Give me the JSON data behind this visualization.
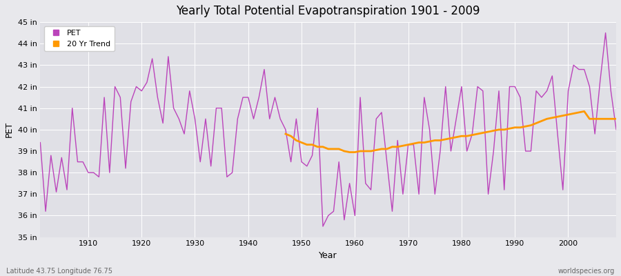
{
  "title": "Yearly Total Potential Evapotranspiration 1901 - 2009",
  "xlabel": "Year",
  "ylabel": "PET",
  "subtitle_left": "Latitude 43.75 Longitude 76.75",
  "subtitle_right": "worldspecies.org",
  "pet_color": "#bb44bb",
  "trend_color": "#ff9900",
  "fig_bg_color": "#e8e8ec",
  "plot_bg_color": "#e0e0e6",
  "grid_color": "#ffffff",
  "ylim": [
    35,
    45
  ],
  "xlim": [
    1901,
    2009
  ],
  "xticks": [
    1910,
    1920,
    1930,
    1940,
    1950,
    1960,
    1970,
    1980,
    1990,
    2000
  ],
  "yticks": [
    35,
    36,
    37,
    38,
    39,
    40,
    41,
    42,
    43,
    44,
    45
  ],
  "years": [
    1901,
    1902,
    1903,
    1904,
    1905,
    1906,
    1907,
    1908,
    1909,
    1910,
    1911,
    1912,
    1913,
    1914,
    1915,
    1916,
    1917,
    1918,
    1919,
    1920,
    1921,
    1922,
    1923,
    1924,
    1925,
    1926,
    1927,
    1928,
    1929,
    1930,
    1931,
    1932,
    1933,
    1934,
    1935,
    1936,
    1937,
    1938,
    1939,
    1940,
    1941,
    1942,
    1943,
    1944,
    1945,
    1946,
    1947,
    1948,
    1949,
    1950,
    1951,
    1952,
    1953,
    1954,
    1955,
    1956,
    1957,
    1958,
    1959,
    1960,
    1961,
    1962,
    1963,
    1964,
    1965,
    1966,
    1967,
    1968,
    1969,
    1970,
    1971,
    1972,
    1973,
    1974,
    1975,
    1976,
    1977,
    1978,
    1979,
    1980,
    1981,
    1982,
    1983,
    1984,
    1985,
    1986,
    1987,
    1988,
    1989,
    1990,
    1991,
    1992,
    1993,
    1994,
    1995,
    1996,
    1997,
    1998,
    1999,
    2000,
    2001,
    2002,
    2003,
    2004,
    2005,
    2006,
    2007,
    2008,
    2009
  ],
  "pet_values": [
    39.4,
    36.2,
    38.8,
    37.1,
    38.7,
    37.2,
    41.0,
    38.5,
    38.5,
    38.0,
    38.0,
    37.8,
    41.5,
    38.0,
    42.0,
    41.5,
    38.2,
    41.3,
    42.0,
    41.8,
    42.2,
    43.3,
    41.5,
    40.3,
    43.4,
    41.0,
    40.5,
    39.8,
    41.8,
    40.5,
    38.5,
    40.5,
    38.3,
    41.0,
    41.0,
    37.8,
    38.0,
    40.5,
    41.5,
    41.5,
    40.5,
    41.5,
    42.8,
    40.5,
    41.5,
    40.5,
    40.0,
    38.5,
    40.5,
    38.5,
    38.3,
    38.8,
    41.0,
    35.5,
    36.0,
    36.2,
    38.5,
    35.8,
    37.5,
    36.0,
    41.5,
    37.5,
    37.2,
    40.5,
    40.8,
    38.5,
    36.2,
    39.5,
    37.0,
    39.3,
    39.3,
    37.0,
    41.5,
    40.0,
    37.0,
    39.0,
    42.0,
    39.0,
    40.5,
    42.0,
    39.0,
    39.8,
    42.0,
    41.8,
    37.0,
    39.0,
    41.8,
    37.2,
    42.0,
    42.0,
    41.5,
    39.0,
    39.0,
    41.8,
    41.5,
    41.8,
    42.5,
    39.8,
    37.2,
    41.8,
    43.0,
    42.8,
    42.8,
    42.0,
    39.8,
    42.3,
    44.5,
    41.8,
    40.0
  ],
  "trend_years": [
    1947,
    1948,
    1949,
    1950,
    1951,
    1952,
    1953,
    1954,
    1955,
    1956,
    1957,
    1958,
    1959,
    1960,
    1961,
    1962,
    1963,
    1964,
    1965,
    1966,
    1967,
    1968,
    1969,
    1970,
    1971,
    1972,
    1973,
    1974,
    1975,
    1976,
    1977,
    1978,
    1979,
    1980,
    1981,
    1982,
    1983,
    1984,
    1985,
    1986,
    1987,
    1988,
    1989,
    1990,
    1991,
    1992,
    1993,
    1994,
    1995,
    1996,
    1997,
    1998,
    1999,
    2000,
    2001,
    2002,
    2003,
    2004,
    2005,
    2006,
    2007,
    2008,
    2009
  ],
  "trend_values": [
    39.8,
    39.7,
    39.5,
    39.4,
    39.3,
    39.3,
    39.2,
    39.2,
    39.1,
    39.1,
    39.1,
    39.0,
    38.95,
    38.95,
    39.0,
    39.0,
    39.0,
    39.05,
    39.1,
    39.1,
    39.2,
    39.2,
    39.25,
    39.3,
    39.35,
    39.4,
    39.4,
    39.45,
    39.5,
    39.5,
    39.55,
    39.6,
    39.65,
    39.7,
    39.7,
    39.75,
    39.8,
    39.85,
    39.9,
    39.95,
    40.0,
    40.0,
    40.05,
    40.1,
    40.1,
    40.15,
    40.2,
    40.3,
    40.4,
    40.5,
    40.55,
    40.6,
    40.65,
    40.7,
    40.75,
    40.8,
    40.85,
    40.5,
    40.5,
    40.5,
    40.5,
    40.5,
    40.5
  ]
}
